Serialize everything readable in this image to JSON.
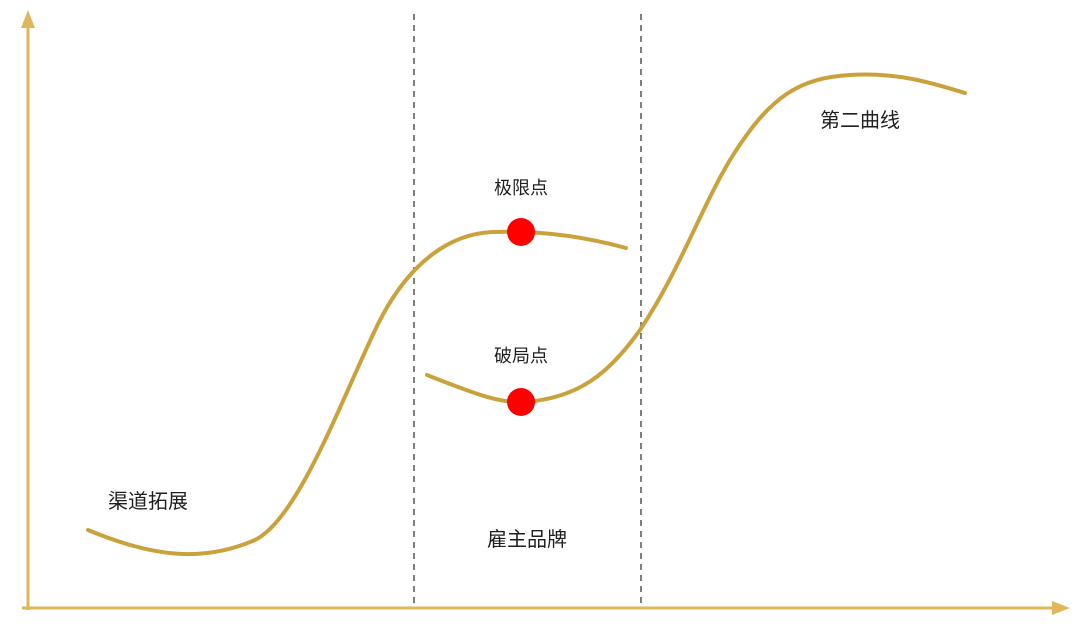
{
  "labels": {
    "curve_one": "渠道拓展",
    "limit_point": "极限点",
    "breakthrough_point": "破局点",
    "middle_zone": "雇主品牌",
    "second_curve": "第二曲线"
  },
  "colors": {
    "axis": "#E0B65A",
    "curve": "#C9A23C",
    "divider": "#7f7f7f",
    "point": "#FF0000",
    "text": "#1f1f1f"
  }
}
